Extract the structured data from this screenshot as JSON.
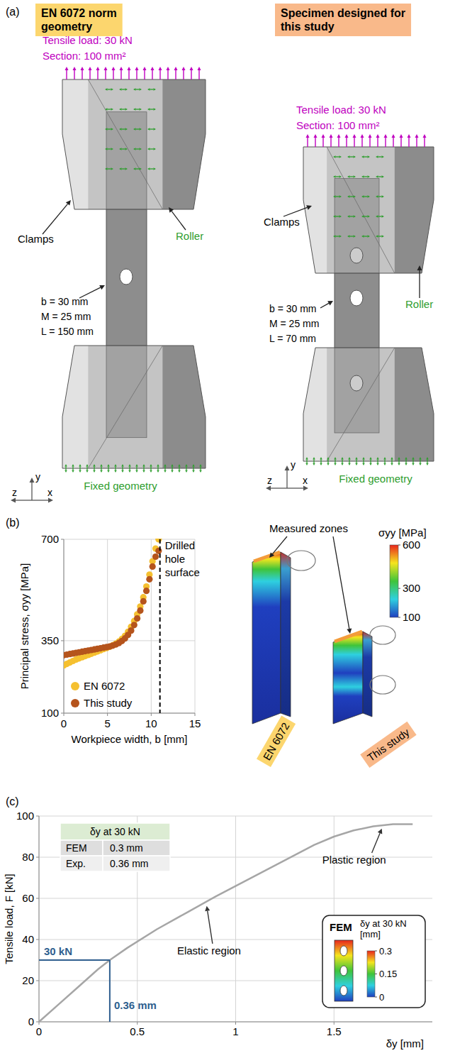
{
  "panel_a": {
    "label": "(a)",
    "left": {
      "title": "EN 6072 norm geometry",
      "load": "Tensile load: 30 kN",
      "section": "Section: 100 mm²",
      "clamps": "Clamps",
      "roller": "Roller",
      "dimensions": [
        "b = 30 mm",
        "M = 25 mm",
        "L = 150 mm"
      ],
      "support": "Fixed geometry",
      "axes": {
        "vertical": "y",
        "left": "z",
        "right": "x"
      }
    },
    "right": {
      "title": "Specimen designed for this study",
      "load": "Tensile load: 30 kN",
      "section": "Section: 100 mm²",
      "clamps": "Clamps",
      "roller": "Roller",
      "dimensions": [
        "b = 30 mm",
        "M = 25 mm",
        "L = 70 mm"
      ],
      "support": "Fixed geometry",
      "axes": {
        "vertical": "y",
        "left": "z",
        "right": "x"
      }
    }
  },
  "panel_b": {
    "label": "(b)",
    "measured_zones": "Measured zones",
    "views": [
      "EN 6072",
      "This study"
    ],
    "colorbar": {
      "title": "σyy [MPa]",
      "range": [
        100,
        600
      ],
      "ticks": [
        100,
        300,
        600
      ]
    }
  },
  "panel_c": {
    "label": "(c)",
    "table": {
      "header": "δy at 30 kN",
      "rows": [
        [
          "FEM",
          "0.3 mm"
        ],
        [
          "Exp.",
          "0.36 mm"
        ]
      ]
    },
    "inset": {
      "title": "FEM",
      "colorbar": {
        "title": "δy at 30 kN [mm]",
        "range": [
          0,
          0.3
        ],
        "ticks": [
          0,
          0.15,
          0.3
        ]
      }
    }
  },
  "chart_data": [
    {
      "type": "scatter",
      "xlabel": "Workpiece width, b [mm]",
      "ylabel": "Principal stress, σyy [MPa]",
      "x": [
        0,
        0.35,
        0.7,
        1.05,
        1.4,
        1.75,
        2.1,
        2.45,
        2.8,
        3.15,
        3.5,
        3.85,
        4.2,
        4.55,
        4.9,
        5.25,
        5.6,
        5.95,
        6.3,
        6.65,
        7,
        7.35,
        7.7,
        8.05,
        8.4,
        8.75,
        9.1,
        9.45,
        9.8,
        10.15,
        10.5,
        10.85
      ],
      "series": [
        {
          "name": "EN 6072",
          "color": "#f5c030",
          "values": [
            265,
            270,
            275,
            280,
            285,
            289,
            293,
            297,
            301,
            305,
            309,
            313,
            317,
            321,
            325,
            329,
            334,
            340,
            347,
            356,
            367,
            381,
            398,
            418,
            441,
            468,
            500,
            537,
            578,
            624,
            668,
            700
          ]
        },
        {
          "name": "This study",
          "color": "#b5541c",
          "values": [
            300,
            302,
            304,
            306,
            308,
            310,
            312,
            314,
            316,
            318,
            320,
            322,
            324,
            326,
            328,
            330,
            333,
            337,
            342,
            349,
            358,
            370,
            385,
            404,
            427,
            454,
            486,
            522,
            562,
            606,
            640,
            660
          ]
        }
      ],
      "xlim": [
        0,
        15
      ],
      "ylim": [
        100,
        700
      ],
      "xticks": [
        0,
        5,
        10,
        15
      ],
      "yticks": [
        100,
        350,
        700
      ],
      "grid": true,
      "legend": "bottom-left",
      "marker": "circle",
      "annotations": [
        {
          "text": "Drilled hole surface",
          "x": 11
        }
      ]
    },
    {
      "type": "line",
      "xlabel": "δy [mm]",
      "ylabel": "Tensile load, F [kN]",
      "x": [
        0,
        0.1,
        0.2,
        0.3,
        0.36,
        0.45,
        0.6,
        0.75,
        0.9,
        1,
        1.1,
        1.2,
        1.3,
        1.4,
        1.5,
        1.6,
        1.7,
        1.8,
        1.9
      ],
      "values": [
        0,
        8.5,
        17,
        25.5,
        30,
        36,
        45,
        53,
        61,
        66,
        71,
        76,
        81,
        86,
        90,
        93,
        95,
        96,
        96
      ],
      "color": "#a6a6a6",
      "xlim": [
        0,
        2
      ],
      "ylim": [
        0,
        100
      ],
      "xticks": [
        0,
        0.5,
        1,
        1.5
      ],
      "yticks": [
        0,
        20,
        40,
        60,
        80,
        100
      ],
      "grid": true,
      "reference": {
        "x": 0.36,
        "y": 30,
        "x_label": "0.36 mm",
        "y_label": "30 kN"
      },
      "annotations": [
        {
          "text": "Elastic region",
          "x": 0.85,
          "y": 58
        },
        {
          "text": "Plastic region",
          "x": 1.75,
          "y": 95.5
        }
      ]
    }
  ]
}
